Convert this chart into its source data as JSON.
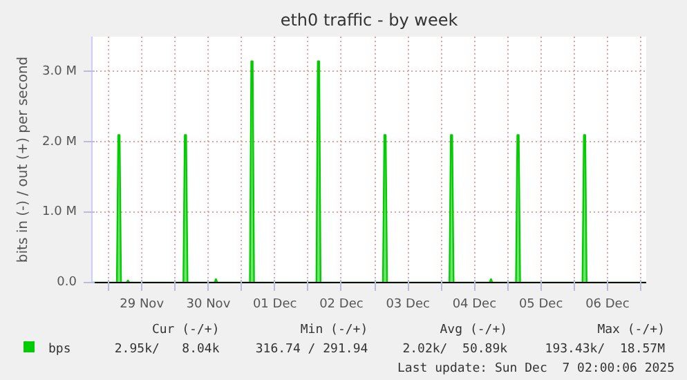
{
  "chart_data": {
    "type": "area",
    "title": "eth0 traffic - by week",
    "ylabel": "bits in (-) / out (+) per second",
    "xlim": [
      "2025-11-28T18:00",
      "2025-12-07T02:00"
    ],
    "xticks": [
      {
        "value": "2025-11-29T00:00",
        "label": null
      },
      {
        "value": "2025-11-29T12:00",
        "label": "29 Nov"
      },
      {
        "value": "2025-11-30T00:00",
        "label": null
      },
      {
        "value": "2025-11-30T12:00",
        "label": "30 Nov"
      },
      {
        "value": "2025-12-01T00:00",
        "label": null
      },
      {
        "value": "2025-12-01T12:00",
        "label": "01 Dec"
      },
      {
        "value": "2025-12-02T00:00",
        "label": null
      },
      {
        "value": "2025-12-02T12:00",
        "label": "02 Dec"
      },
      {
        "value": "2025-12-03T00:00",
        "label": null
      },
      {
        "value": "2025-12-03T12:00",
        "label": "03 Dec"
      },
      {
        "value": "2025-12-04T00:00",
        "label": null
      },
      {
        "value": "2025-12-04T12:00",
        "label": "04 Dec"
      },
      {
        "value": "2025-12-05T00:00",
        "label": null
      },
      {
        "value": "2025-12-05T12:00",
        "label": "05 Dec"
      },
      {
        "value": "2025-12-06T00:00",
        "label": null
      },
      {
        "value": "2025-12-06T12:00",
        "label": "06 Dec"
      },
      {
        "value": "2025-12-07T00:00",
        "label": null
      }
    ],
    "ylim": [
      0,
      3.5
    ],
    "yticks": [
      {
        "value": 0,
        "label": "0.0"
      },
      {
        "value": 1,
        "label": "1.0 M"
      },
      {
        "value": 2,
        "label": "2.0 M"
      },
      {
        "value": 3,
        "label": "3.0 M"
      }
    ],
    "grid": true,
    "legend": "bottom",
    "series": [
      {
        "name": "bps",
        "color": "#00cc00",
        "x": [
          "2025-11-28T18:00",
          "2025-11-29T03:00",
          "2025-11-29T03:30",
          "2025-11-29T04:00",
          "2025-11-29T04:30",
          "2025-11-29T06:30",
          "2025-11-29T07:00",
          "2025-11-29T07:30",
          "2025-11-30T03:00",
          "2025-11-30T03:30",
          "2025-11-30T04:00",
          "2025-11-30T04:30",
          "2025-11-30T14:15",
          "2025-11-30T14:45",
          "2025-11-30T15:15",
          "2025-12-01T03:00",
          "2025-12-01T03:30",
          "2025-12-01T04:00",
          "2025-12-01T04:30",
          "2025-12-02T03:00",
          "2025-12-02T03:30",
          "2025-12-02T04:00",
          "2025-12-02T04:30",
          "2025-12-03T03:00",
          "2025-12-03T03:30",
          "2025-12-03T04:00",
          "2025-12-03T04:30",
          "2025-12-04T03:00",
          "2025-12-04T03:30",
          "2025-12-04T04:00",
          "2025-12-04T04:30",
          "2025-12-04T17:30",
          "2025-12-04T18:00",
          "2025-12-04T18:30",
          "2025-12-05T03:00",
          "2025-12-05T03:30",
          "2025-12-05T04:00",
          "2025-12-05T04:30",
          "2025-12-06T03:00",
          "2025-12-06T03:30",
          "2025-12-06T04:00",
          "2025-12-06T04:30",
          "2025-12-07T02:00"
        ],
        "values": [
          0,
          0,
          2.1,
          2.1,
          0,
          0,
          0.03,
          0,
          0,
          2.1,
          2.1,
          0,
          0,
          0.05,
          0,
          0,
          3.15,
          3.15,
          0,
          0,
          3.15,
          3.15,
          0,
          0,
          2.1,
          2.1,
          0,
          0,
          2.1,
          2.1,
          0,
          0,
          0.05,
          0,
          0,
          2.1,
          2.1,
          0,
          0,
          2.1,
          2.1,
          0,
          0
        ]
      }
    ],
    "annotations": [
      "Cur (-/+)",
      "Min (-/+)",
      "Avg (-/+)",
      "Max (-/+)",
      "2.95k/   8.04k",
      "316.74 / 291.94",
      "2.02k/  50.89k",
      "193.43k/  18.57M",
      "Last update: Sun Dec  7 02:00:06 2025"
    ]
  }
}
